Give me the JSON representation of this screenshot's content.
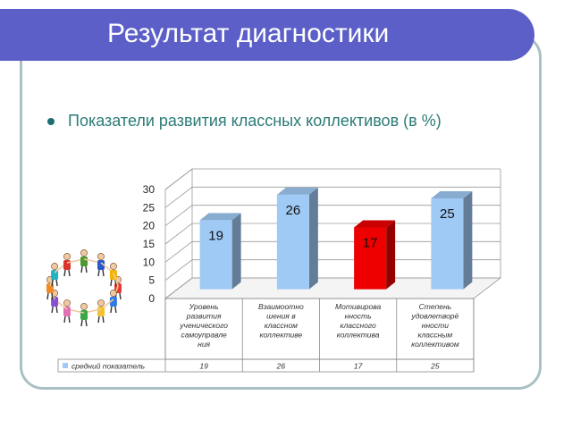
{
  "slide": {
    "title": "Результат диагностики",
    "subtitle": "Показатели развития классных коллективов (в %)"
  },
  "colors": {
    "title_bar": "#5b5fc7",
    "bar_blue": "#9fcaf5",
    "bar_red": "#ee0000",
    "frame": "#a9c1c4",
    "subtitle": "#2a7b76"
  },
  "chart_data": {
    "type": "bar",
    "categories": [
      [
        "Уровень",
        "развития",
        "ученического",
        "самоуправле",
        "ния"
      ],
      [
        "Взаимоотно",
        "шения в",
        "классном",
        "коллективе"
      ],
      [
        "Мотивирова",
        "нность",
        "классного",
        "коллектива"
      ],
      [
        "Степень",
        "удовлетворё",
        "нности",
        "классным",
        "коллективом"
      ]
    ],
    "series": [
      {
        "name": "средний показатель",
        "values": [
          19,
          26,
          17,
          25
        ],
        "colors": [
          "#9fcaf5",
          "#9fcaf5",
          "#ee0000",
          "#9fcaf5"
        ]
      }
    ],
    "ylim": [
      0,
      30
    ],
    "yticks": [
      "0",
      "5",
      "10",
      "15",
      "20",
      "25",
      "30"
    ],
    "data_labels": [
      "19",
      "26",
      "17",
      "25"
    ],
    "table_values": [
      "19",
      "26",
      "17",
      "25"
    ],
    "grid": true,
    "style": "3d"
  }
}
